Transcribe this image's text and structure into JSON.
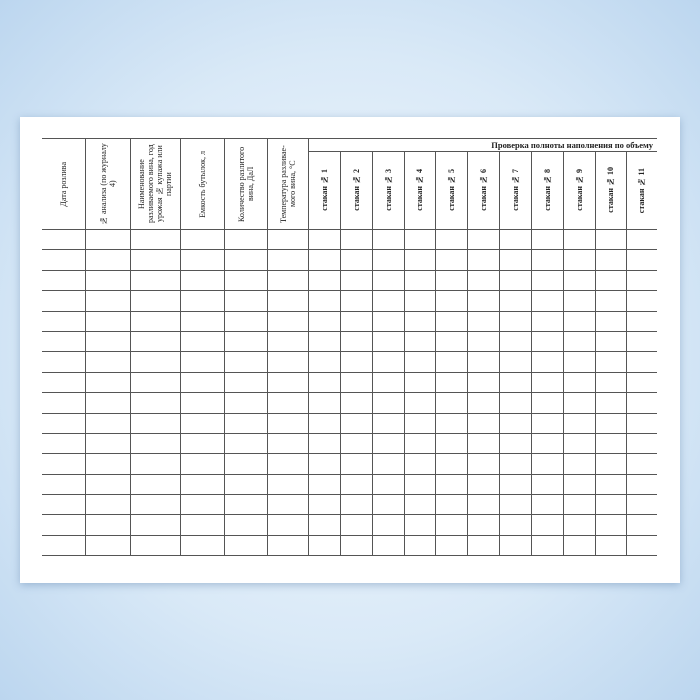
{
  "form": {
    "columns": [
      "Дата розлива",
      "№ анализа (по журналу 4)",
      "Наименование разливаемого вина, год урожая № купажа или партии",
      "Емкость бутылок, л",
      "Количество разлитого вина, ДаЛ",
      "Температура разливае-мого вина, °С"
    ],
    "group_header": "Проверка полноты наполнения по объему",
    "sub_columns": [
      "стакан № 1",
      "стакан № 2",
      "стакан № 3",
      "стакан № 4",
      "стакан № 5",
      "стакан № 6",
      "стакан № 7",
      "стакан № 8",
      "стакан № 9",
      "стакан № 10",
      "стакан № 11"
    ],
    "body_rows": 16
  }
}
